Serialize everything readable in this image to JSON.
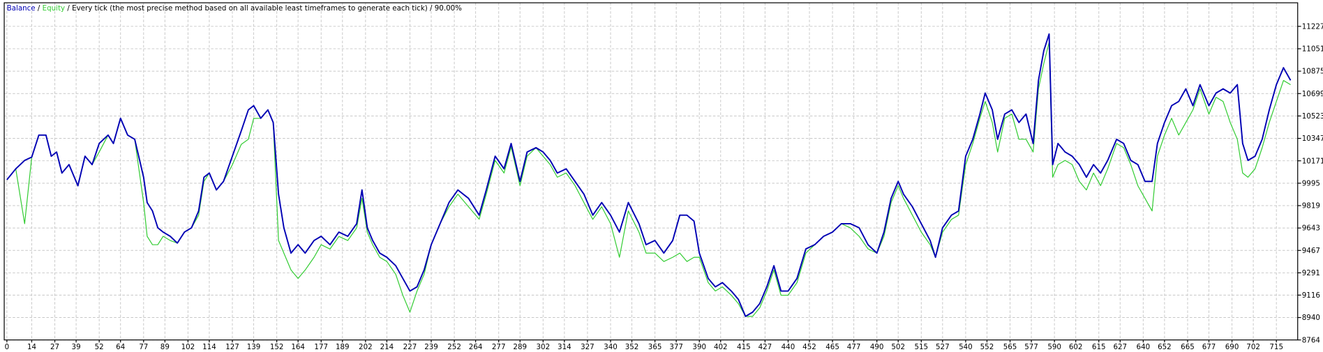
{
  "chart_data": {
    "type": "line",
    "title_separator": "/",
    "title_suffix": "Every tick (the most precise method based on all available least timeframes to generate each tick) / 90.00%",
    "grid": true,
    "xlim": [
      -1.5,
      727
    ],
    "ylim": [
      8764,
      11412
    ],
    "xticks": [
      0,
      14,
      27,
      39,
      52,
      64,
      77,
      89,
      102,
      114,
      127,
      139,
      152,
      164,
      177,
      189,
      202,
      214,
      227,
      239,
      252,
      264,
      277,
      289,
      302,
      314,
      327,
      340,
      352,
      365,
      377,
      390,
      402,
      415,
      427,
      440,
      452,
      465,
      477,
      490,
      502,
      515,
      527,
      540,
      552,
      565,
      577,
      590,
      602,
      615,
      627,
      640,
      652,
      665,
      677,
      690,
      702,
      715
    ],
    "yticks": [
      8764,
      8940,
      9116,
      9291,
      9467,
      9643,
      9819,
      9995,
      10171,
      10347,
      10523,
      10699,
      10875,
      11051,
      11227
    ],
    "x": [
      0,
      5,
      10,
      14,
      18,
      22,
      25,
      28,
      31,
      35,
      40,
      44,
      48,
      52,
      57,
      60,
      64,
      68,
      72,
      77,
      79,
      82,
      85,
      88,
      92,
      96,
      100,
      104,
      108,
      111,
      114,
      118,
      122,
      127,
      132,
      136,
      139,
      143,
      147,
      150,
      153,
      156,
      160,
      164,
      168,
      173,
      177,
      182,
      187,
      192,
      197,
      200,
      203,
      206,
      210,
      214,
      219,
      223,
      227,
      231,
      235,
      239,
      244,
      249,
      254,
      260,
      266,
      270,
      275,
      280,
      284,
      289,
      293,
      298,
      302,
      306,
      310,
      315,
      320,
      325,
      330,
      335,
      340,
      345,
      350,
      356,
      360,
      365,
      370,
      375,
      379,
      383,
      387,
      390,
      395,
      399,
      403,
      408,
      412,
      416,
      420,
      424,
      428,
      432,
      436,
      440,
      445,
      450,
      455,
      460,
      465,
      470,
      475,
      480,
      485,
      490,
      494,
      498,
      502,
      505,
      510,
      515,
      520,
      523,
      527,
      532,
      536,
      540,
      544,
      548,
      551,
      555,
      558,
      562,
      566,
      570,
      574,
      578,
      581,
      584,
      587,
      589,
      592,
      596,
      600,
      604,
      608,
      612,
      616,
      620,
      625,
      629,
      633,
      637,
      641,
      645,
      648,
      652,
      656,
      660,
      664,
      668,
      672,
      677,
      681,
      685,
      689,
      693,
      696,
      699,
      703,
      707,
      711,
      715,
      719,
      723
    ],
    "series": [
      {
        "name": "Balance",
        "color": "#0000b4",
        "values": [
          10022,
          10108,
          10174,
          10200,
          10373,
          10373,
          10207,
          10240,
          10075,
          10141,
          9975,
          10207,
          10141,
          10307,
          10373,
          10307,
          10505,
          10373,
          10340,
          10042,
          9843,
          9777,
          9645,
          9611,
          9578,
          9525,
          9611,
          9645,
          9777,
          10042,
          10075,
          9942,
          10009,
          10207,
          10406,
          10571,
          10604,
          10505,
          10571,
          10472,
          9909,
          9645,
          9446,
          9512,
          9446,
          9545,
          9578,
          9512,
          9611,
          9578,
          9677,
          9942,
          9645,
          9545,
          9446,
          9413,
          9347,
          9247,
          9148,
          9181,
          9314,
          9512,
          9677,
          9843,
          9942,
          9876,
          9744,
          9942,
          10207,
          10108,
          10307,
          10009,
          10240,
          10274,
          10240,
          10174,
          10075,
          10108,
          10009,
          9909,
          9744,
          9843,
          9744,
          9611,
          9843,
          9677,
          9512,
          9545,
          9446,
          9545,
          9744,
          9744,
          9697,
          9446,
          9247,
          9181,
          9214,
          9148,
          9082,
          8949,
          8982,
          9049,
          9181,
          9347,
          9148,
          9148,
          9247,
          9479,
          9512,
          9578,
          9611,
          9677,
          9677,
          9645,
          9512,
          9446,
          9611,
          9876,
          10009,
          9909,
          9810,
          9677,
          9545,
          9413,
          9645,
          9744,
          9777,
          10207,
          10340,
          10538,
          10703,
          10571,
          10340,
          10538,
          10571,
          10472,
          10538,
          10307,
          10803,
          11035,
          11167,
          10141,
          10307,
          10240,
          10207,
          10141,
          10042,
          10141,
          10075,
          10174,
          10340,
          10307,
          10174,
          10141,
          10009,
          10009,
          10307,
          10472,
          10604,
          10637,
          10736,
          10604,
          10769,
          10604,
          10703,
          10736,
          10703,
          10769,
          10307,
          10174,
          10207,
          10340,
          10571,
          10769,
          10902,
          10803
        ]
      },
      {
        "name": "Equity",
        "color": "#33cc33",
        "values": [
          10022,
          10108,
          9677,
          10200,
          10373,
          10373,
          10207,
          10240,
          10075,
          10141,
          9975,
          10207,
          10141,
          10240,
          10373,
          10307,
          10505,
          10373,
          10340,
          9843,
          9578,
          9512,
          9512,
          9578,
          9545,
          9525,
          9611,
          9645,
          9744,
          10009,
          10075,
          9942,
          10009,
          10140,
          10300,
          10340,
          10504,
          10505,
          10571,
          10472,
          9545,
          9446,
          9314,
          9247,
          9313,
          9413,
          9512,
          9478,
          9577,
          9545,
          9644,
          9876,
          9611,
          9512,
          9413,
          9380,
          9280,
          9115,
          8982,
          9148,
          9280,
          9512,
          9677,
          9810,
          9909,
          9810,
          9712,
          9909,
          10174,
          10075,
          10280,
          9976,
          10207,
          10274,
          10207,
          10141,
          10042,
          10075,
          9976,
          9843,
          9711,
          9810,
          9678,
          9413,
          9777,
          9611,
          9446,
          9446,
          9380,
          9413,
          9446,
          9380,
          9413,
          9413,
          9214,
          9148,
          9181,
          9115,
          9049,
          8949,
          8949,
          9016,
          9148,
          9314,
          9115,
          9115,
          9214,
          9446,
          9512,
          9578,
          9611,
          9677,
          9645,
          9578,
          9479,
          9446,
          9578,
          9843,
          9976,
          9876,
          9744,
          9611,
          9512,
          9413,
          9611,
          9711,
          9744,
          10141,
          10307,
          10505,
          10637,
          10472,
          10240,
          10505,
          10538,
          10340,
          10340,
          10240,
          10736,
          10935,
          11100,
          10042,
          10141,
          10174,
          10141,
          10009,
          9942,
          10075,
          9976,
          10108,
          10307,
          10274,
          10141,
          9975,
          9876,
          9777,
          10207,
          10373,
          10505,
          10373,
          10472,
          10571,
          10736,
          10538,
          10670,
          10637,
          10472,
          10340,
          10075,
          10042,
          10108,
          10274,
          10472,
          10637,
          10802,
          10769
        ]
      }
    ]
  }
}
